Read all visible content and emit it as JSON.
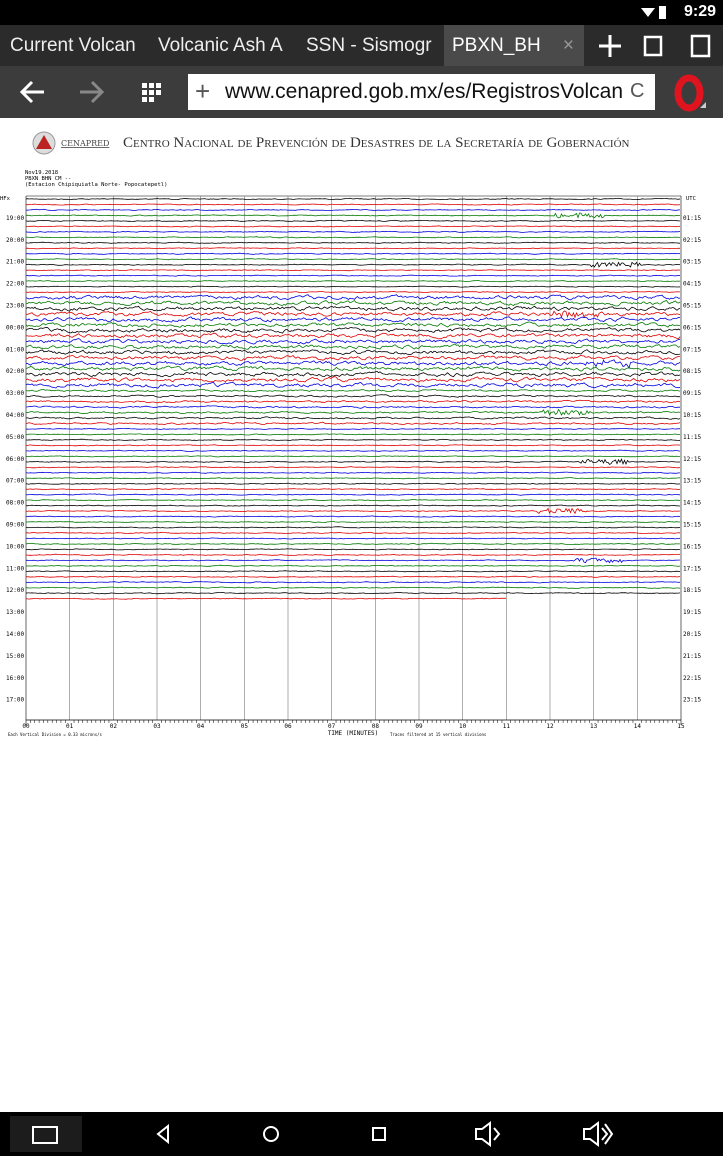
{
  "status_bar": {
    "time": "9:29"
  },
  "tabs": [
    "Current Volcan",
    "Volcanic Ash A",
    "SSN - Sismogr",
    "PBXN_BH"
  ],
  "address_bar": {
    "url": "www.cenapred.gob.mx/es/RegistrosVolcanicos"
  },
  "header": {
    "logo_text": "CENAPRED",
    "title": "Centro Nacional de Prevención de Desastres de la Secretaría de Gobernación"
  },
  "seismogram": {
    "info": [
      "Nov19.2018",
      "PBXN BHN CM --",
      "(Estacion Chipiquiatla Norte- Popocatepetl)"
    ],
    "left_unit": "HFx",
    "right_unit": "UTC",
    "left_labels": [
      "19:00",
      "20:00",
      "21:00",
      "22:00",
      "23:00",
      "00:00",
      "01:00",
      "02:00",
      "03:00",
      "04:00",
      "05:00",
      "06:00",
      "07:00",
      "08:00",
      "09:00",
      "10:00",
      "11:00",
      "12:00",
      "13:00",
      "14:00",
      "15:00",
      "16:00",
      "17:00"
    ],
    "right_labels": [
      "01:15",
      "02:15",
      "03:15",
      "04:15",
      "05:15",
      "06:15",
      "07:15",
      "08:15",
      "09:15",
      "10:15",
      "11:15",
      "12:15",
      "13:15",
      "14:15",
      "15:15",
      "16:15",
      "17:15",
      "18:15",
      "19:15",
      "20:15",
      "21:15",
      "22:15",
      "23:15"
    ],
    "x_ticks": [
      "00",
      "01",
      "02",
      "03",
      "04",
      "05",
      "06",
      "07",
      "08",
      "09",
      "10",
      "11",
      "12",
      "13",
      "14",
      "15"
    ],
    "x_label": "TIME (MINUTES)",
    "footnotes": [
      "Each Vertical Division = 0.33 microns/s",
      "Traces filtered at 15 vertical divisions"
    ]
  }
}
